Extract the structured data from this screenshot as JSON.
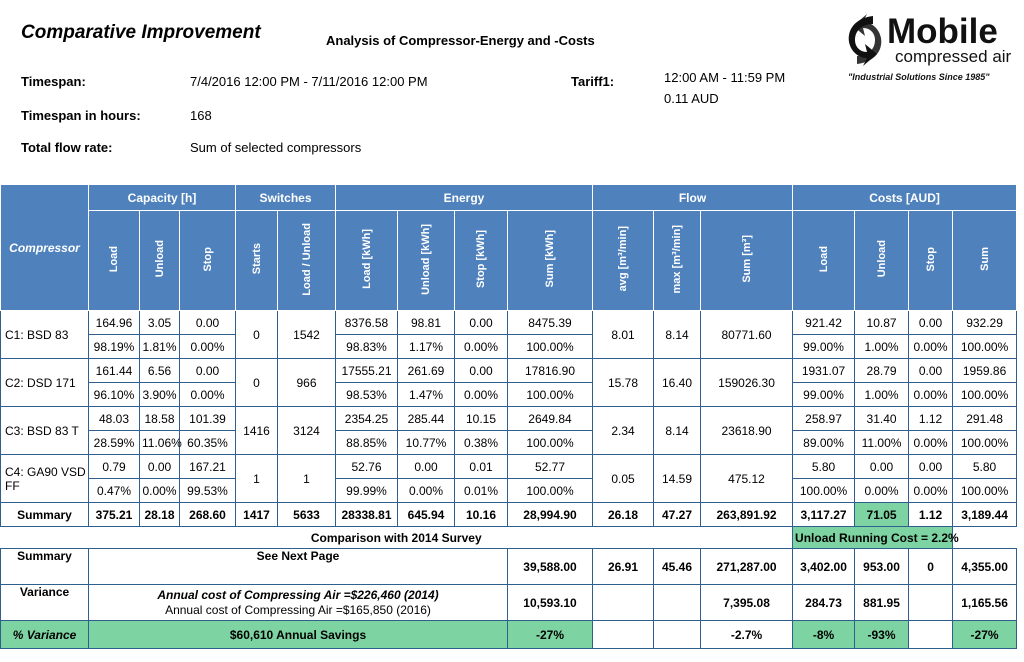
{
  "header": {
    "title": "Comparative Improvement",
    "subtitle": "Analysis of Compressor-Energy and -Costs"
  },
  "logo": {
    "brand": "Mobile",
    "sub": "compressed air",
    "tagline": "\"Industrial Solutions Since 1985\""
  },
  "info": {
    "timespan_label": "Timespan:",
    "timespan_value": "7/4/2016 12:00 PM - 7/11/2016 12:00 PM",
    "hours_label": "Timespan in hours:",
    "hours_value": "168",
    "flow_label": "Total flow rate:",
    "flow_value": "Sum of selected compressors",
    "tariff_label": "Tariff1:",
    "tariff_time": "12:00 AM - 11:59 PM",
    "tariff_price": "0.11 AUD"
  },
  "table": {
    "compressor_header": "Compressor",
    "groups": {
      "capacity": "Capacity [h]",
      "switches": "Switches",
      "energy": "Energy",
      "flow": "Flow",
      "costs": "Costs [AUD]"
    },
    "cols": {
      "load": "Load",
      "unload": "Unload",
      "stop": "Stop",
      "starts": "Starts",
      "load_unload": "Load / Unload",
      "load_kwh": "Load [kWh]",
      "unload_kwh": "Unload [kWh]",
      "stop_kwh": "Stop [kWh]",
      "sum_kwh": "Sum [kWh]",
      "avg_flow": "avg [m³/min]",
      "max_flow": "max [m³/min]",
      "sum_flow": "Sum [m³]",
      "cost_load": "Load",
      "cost_unload": "Unload",
      "cost_stop": "Stop",
      "cost_sum": "Sum"
    },
    "compressors": [
      {
        "name": "C1:  BSD 83",
        "cap": [
          "164.96",
          "3.05",
          "0.00"
        ],
        "cap_pct": [
          "98.19%",
          "1.81%",
          "0.00%"
        ],
        "starts": "0",
        "load_unload": "1542",
        "energy": [
          "8376.58",
          "98.81",
          "0.00",
          "8475.39"
        ],
        "energy_pct": [
          "98.83%",
          "1.17%",
          "0.00%",
          "100.00%"
        ],
        "flow": [
          "8.01",
          "8.14",
          "80771.60"
        ],
        "costs": [
          "921.42",
          "10.87",
          "0.00",
          "932.29"
        ],
        "costs_pct": [
          "99.00%",
          "1.00%",
          "0.00%",
          "100.00%"
        ]
      },
      {
        "name": "C2:  DSD 171",
        "cap": [
          "161.44",
          "6.56",
          "0.00"
        ],
        "cap_pct": [
          "96.10%",
          "3.90%",
          "0.00%"
        ],
        "starts": "0",
        "load_unload": "966",
        "energy": [
          "17555.21",
          "261.69",
          "0.00",
          "17816.90"
        ],
        "energy_pct": [
          "98.53%",
          "1.47%",
          "0.00%",
          "100.00%"
        ],
        "flow": [
          "15.78",
          "16.40",
          "159026.30"
        ],
        "costs": [
          "1931.07",
          "28.79",
          "0.00",
          "1959.86"
        ],
        "costs_pct": [
          "99.00%",
          "1.00%",
          "0.00%",
          "100.00%"
        ]
      },
      {
        "name": "C3:  BSD 83 T",
        "cap": [
          "48.03",
          "18.58",
          "101.39"
        ],
        "cap_pct": [
          "28.59%",
          "11.06%",
          "60.35%"
        ],
        "starts": "1416",
        "load_unload": "3124",
        "energy": [
          "2354.25",
          "285.44",
          "10.15",
          "2649.84"
        ],
        "energy_pct": [
          "88.85%",
          "10.77%",
          "0.38%",
          "100.00%"
        ],
        "flow": [
          "2.34",
          "8.14",
          "23618.90"
        ],
        "costs": [
          "258.97",
          "31.40",
          "1.12",
          "291.48"
        ],
        "costs_pct": [
          "89.00%",
          "11.00%",
          "0.00%",
          "100.00%"
        ]
      },
      {
        "name": "C4:  GA90 VSD FF",
        "cap": [
          "0.79",
          "0.00",
          "167.21"
        ],
        "cap_pct": [
          "0.47%",
          "0.00%",
          "99.53%"
        ],
        "starts": "1",
        "load_unload": "1",
        "energy": [
          "52.76",
          "0.00",
          "0.01",
          "52.77"
        ],
        "energy_pct": [
          "99.99%",
          "0.00%",
          "0.01%",
          "100.00%"
        ],
        "flow": [
          "0.05",
          "14.59",
          "475.12"
        ],
        "costs": [
          "5.80",
          "0.00",
          "0.00",
          "5.80"
        ],
        "costs_pct": [
          "100.00%",
          "0.00%",
          "0.00%",
          "100.00%"
        ]
      }
    ],
    "summary": {
      "label": "Summary",
      "cap": [
        "375.21",
        "28.18",
        "268.60"
      ],
      "starts": "1417",
      "load_unload": "5633",
      "energy": [
        "28338.81",
        "645.94",
        "10.16",
        "28,994.90"
      ],
      "flow": [
        "26.18",
        "47.27",
        "263,891.92"
      ],
      "costs": [
        "3,117.27",
        "71.05",
        "1.12",
        "3,189.44"
      ]
    },
    "comparison_title": "Comparison with 2014 Survey",
    "unload_running_cost": "Unload Running Cost  = 2.2%",
    "survey": {
      "label": "Summary",
      "note": "See Next Page",
      "sum_kwh": "39,588.00",
      "avg_flow": "26.91",
      "max_flow": "45.46",
      "sum_flow": "271,287.00",
      "cost_load": "3,402.00",
      "cost_unload": "953.00",
      "cost_stop": "0",
      "cost_sum": "4,355.00"
    },
    "variance": {
      "label": "Variance",
      "line1": "Annual cost of Compressing Air  =$226,460 (2014)",
      "line2": "Annual cost of Compressing Air  =$165,850 (2016)",
      "sum_kwh": "10,593.10",
      "sum_flow": "7,395.08",
      "cost_load": "284.73",
      "cost_unload": "881.95",
      "cost_sum": "1,165.56"
    },
    "pct_variance": {
      "label": "% Variance",
      "savings": "$60,610 Annual Savings",
      "sum_kwh": "-27%",
      "sum_flow": "-2.7%",
      "cost_load": "-8%",
      "cost_unload": "-93%",
      "cost_sum": "-27%"
    }
  },
  "colors": {
    "header_blue": "#4f81bd",
    "highlight_green": "#7dd3a1"
  }
}
